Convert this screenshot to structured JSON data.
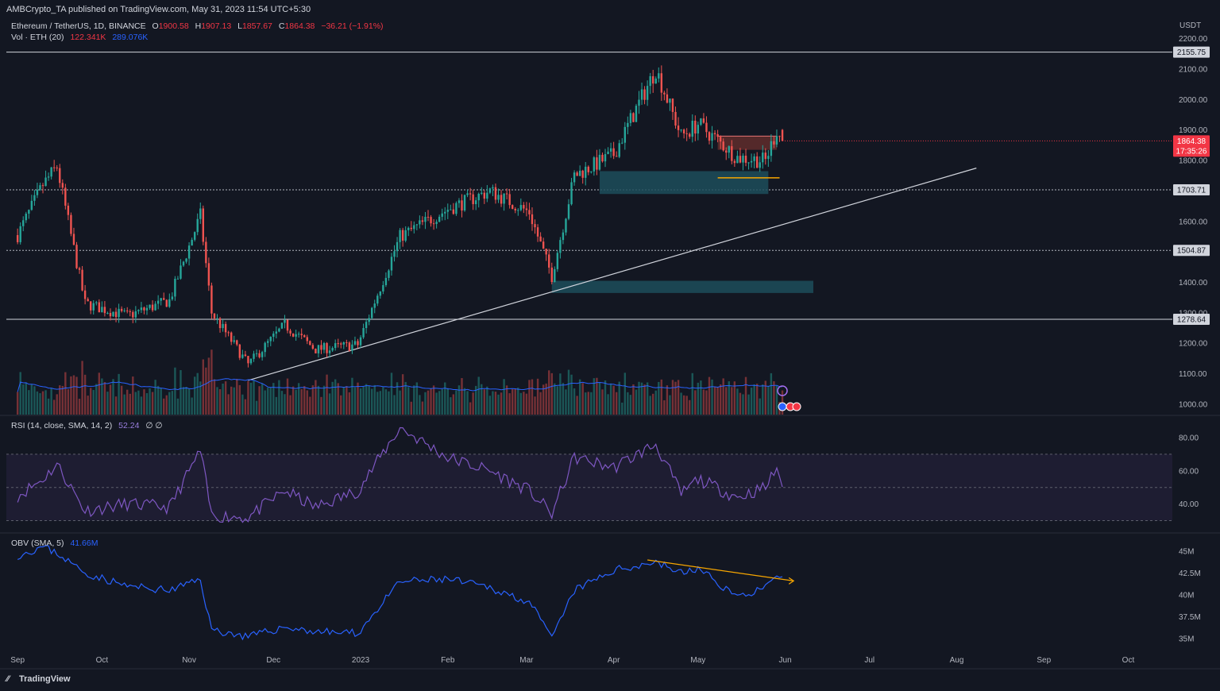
{
  "header": {
    "published": "AMBCrypto_TA published on TradingView.com, May 31, 2023 11:54 UTC+5:30",
    "symbol": "Ethereum / TetherUS, 1D, BINANCE",
    "ohlc": {
      "o_label": "O",
      "o": "1900.58",
      "h_label": "H",
      "h": "1907.13",
      "l_label": "L",
      "l": "1857.67",
      "c_label": "C",
      "c": "1864.38",
      "change": "−36.21 (−1.91%)"
    },
    "vol_label": "Vol · ETH (20)",
    "vol_values": [
      "122.341K",
      "289.076K"
    ],
    "rsi_label": "RSI (14, close, SMA, 14, 2)",
    "rsi_value": "52.24",
    "rsi_extra": "∅  ∅",
    "obv_label": "OBV (SMA, 5)",
    "obv_value": "41.66M"
  },
  "price_axis": {
    "currency": "USDT",
    "ticks": [
      "2200.00",
      "2100.00",
      "2000.00",
      "1900.00",
      "1800.00",
      "1700.00",
      "1600.00",
      "1500.00",
      "1400.00",
      "1300.00",
      "1200.00",
      "1100.00",
      "1000.00"
    ],
    "levels": [
      "2155.75",
      "1703.71",
      "1504.87",
      "1278.64"
    ],
    "last_price": "1864.38",
    "countdown": "17:35:26"
  },
  "rsi_axis": {
    "ticks": [
      "80.00",
      "60.00",
      "40.00"
    ]
  },
  "obv_axis": {
    "ticks": [
      "45M",
      "42.5M",
      "40M",
      "37.5M",
      "35M"
    ]
  },
  "time_axis": {
    "labels": [
      "Sep",
      "Oct",
      "Nov",
      "Dec",
      "2023",
      "Feb",
      "Mar",
      "Apr",
      "May",
      "Jun",
      "Jul",
      "Aug",
      "Sep",
      "Oct"
    ]
  },
  "branding": "TradingView",
  "colors": {
    "background": "#131722",
    "up": "#26a69a",
    "down": "#ef5350",
    "rsi": "#7e57c2",
    "obv": "#2962ff",
    "trendline": "#d1d4dc",
    "demand_zone": "#1d4e5a",
    "supply_zone": "#5c2b2b",
    "divergence": "#f7a600"
  },
  "chart_data": {
    "type": "line",
    "x": [
      "2022-09-01",
      "2022-09-10",
      "2022-09-15",
      "2022-09-25",
      "2022-10-10",
      "2022-10-25",
      "2022-11-05",
      "2022-11-09",
      "2022-11-22",
      "2022-12-05",
      "2022-12-16",
      "2022-12-31",
      "2023-01-15",
      "2023-02-01",
      "2023-02-16",
      "2023-03-02",
      "2023-03-10",
      "2023-03-18",
      "2023-04-01",
      "2023-04-16",
      "2023-04-25",
      "2023-05-01",
      "2023-05-15",
      "2023-05-25",
      "2023-05-29",
      "2023-05-31"
    ],
    "series": [
      {
        "name": "Close",
        "values": [
          1555,
          1720,
          1780,
          1330,
          1290,
          1340,
          1620,
          1300,
          1130,
          1260,
          1180,
          1195,
          1550,
          1640,
          1700,
          1630,
          1420,
          1750,
          1820,
          2100,
          1880,
          1920,
          1810,
          1800,
          1900,
          1864
        ]
      }
    ],
    "rsi": {
      "name": "RSI (14)",
      "values": [
        45,
        55,
        64,
        36,
        40,
        38,
        72,
        33,
        32,
        48,
        38,
        48,
        86,
        68,
        60,
        48,
        34,
        68,
        62,
        76,
        46,
        55,
        44,
        50,
        62,
        52
      ]
    },
    "obv": {
      "name": "OBV",
      "values": [
        44.5,
        45.5,
        44.8,
        42.5,
        41.0,
        40.5,
        41.8,
        36.0,
        35.2,
        36.3,
        35.8,
        35.6,
        41.5,
        41.8,
        40.8,
        39.2,
        35.0,
        40.5,
        42.8,
        43.8,
        42.5,
        43.0,
        39.8,
        40.8,
        41.8,
        41.66
      ]
    },
    "ylim": [
      950,
      2250
    ],
    "rsi_ylim": [
      20,
      90
    ],
    "obv_ylim": [
      33.5,
      46.5
    ]
  }
}
